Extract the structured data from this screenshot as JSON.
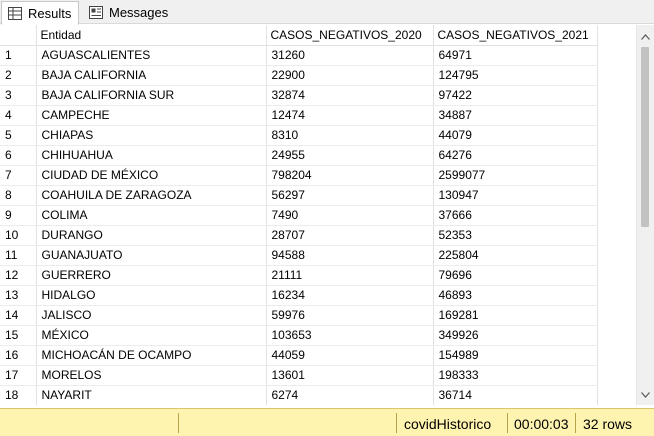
{
  "tabs": [
    {
      "label": "Results",
      "icon": "grid-icon",
      "active": true
    },
    {
      "label": "Messages",
      "icon": "messages-icon",
      "active": false
    }
  ],
  "grid": {
    "columns": [
      "",
      "Entidad",
      "CASOS_NEGATIVOS_2020",
      "CASOS_NEGATIVOS_2021"
    ],
    "rows": [
      [
        "1",
        "AGUASCALIENTES",
        "31260",
        "64971"
      ],
      [
        "2",
        "BAJA CALIFORNIA",
        "22900",
        "124795"
      ],
      [
        "3",
        "BAJA CALIFORNIA SUR",
        "32874",
        "97422"
      ],
      [
        "4",
        "CAMPECHE",
        "12474",
        "34887"
      ],
      [
        "5",
        "CHIAPAS",
        "8310",
        "44079"
      ],
      [
        "6",
        "CHIHUAHUA",
        "24955",
        "64276"
      ],
      [
        "7",
        "CIUDAD DE MÉXICO",
        "798204",
        "2599077"
      ],
      [
        "8",
        "COAHUILA DE ZARAGOZA",
        "56297",
        "130947"
      ],
      [
        "9",
        "COLIMA",
        "7490",
        "37666"
      ],
      [
        "10",
        "DURANGO",
        "28707",
        "52353"
      ],
      [
        "11",
        "GUANAJUATO",
        "94588",
        "225804"
      ],
      [
        "12",
        "GUERRERO",
        "21111",
        "79696"
      ],
      [
        "13",
        "HIDALGO",
        "16234",
        "46893"
      ],
      [
        "14",
        "JALISCO",
        "59976",
        "169281"
      ],
      [
        "15",
        "MÉXICO",
        "103653",
        "349926"
      ],
      [
        "16",
        "MICHOACÁN DE OCAMPO",
        "44059",
        "154989"
      ],
      [
        "17",
        "MORELOS",
        "13601",
        "198333"
      ],
      [
        "18",
        "NAYARIT",
        "6274",
        "36714"
      ]
    ]
  },
  "status": {
    "database": "covidHistorico",
    "elapsed": "00:00:03",
    "rows": "32 rows"
  },
  "colors": {
    "statusbar_bg": "#fff3b0"
  }
}
